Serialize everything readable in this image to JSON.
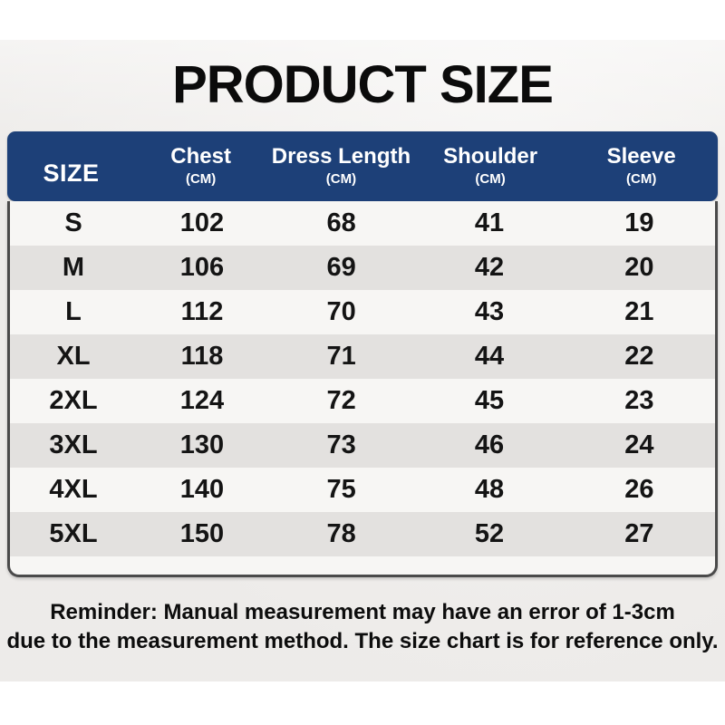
{
  "title": "PRODUCT SIZE",
  "table": {
    "size_header": "SIZE",
    "unit_label": "(CM)",
    "columns": [
      {
        "label": "Chest"
      },
      {
        "label": "Dress Length"
      },
      {
        "label": "Shoulder"
      },
      {
        "label": "Sleeve"
      }
    ],
    "rows": [
      {
        "size": "S",
        "chest": "102",
        "dress_length": "68",
        "shoulder": "41",
        "sleeve": "19"
      },
      {
        "size": "M",
        "chest": "106",
        "dress_length": "69",
        "shoulder": "42",
        "sleeve": "20"
      },
      {
        "size": "L",
        "chest": "112",
        "dress_length": "70",
        "shoulder": "43",
        "sleeve": "21"
      },
      {
        "size": "XL",
        "chest": "118",
        "dress_length": "71",
        "shoulder": "44",
        "sleeve": "22"
      },
      {
        "size": "2XL",
        "chest": "124",
        "dress_length": "72",
        "shoulder": "45",
        "sleeve": "23"
      },
      {
        "size": "3XL",
        "chest": "130",
        "dress_length": "73",
        "shoulder": "46",
        "sleeve": "24"
      },
      {
        "size": "4XL",
        "chest": "140",
        "dress_length": "75",
        "shoulder": "48",
        "sleeve": "26"
      },
      {
        "size": "5XL",
        "chest": "150",
        "dress_length": "78",
        "shoulder": "52",
        "sleeve": "27"
      }
    ]
  },
  "reminder": {
    "line1": "Reminder: Manual measurement may have an error of 1-3cm",
    "line2": "due to the measurement method. The size chart is for reference only."
  },
  "colors": {
    "header_blue": "#1d4078",
    "row_light": "#f7f6f4",
    "row_gray": "#e3e1df",
    "table_border": "#4a4a4a",
    "title_text": "#0b0b0b"
  }
}
